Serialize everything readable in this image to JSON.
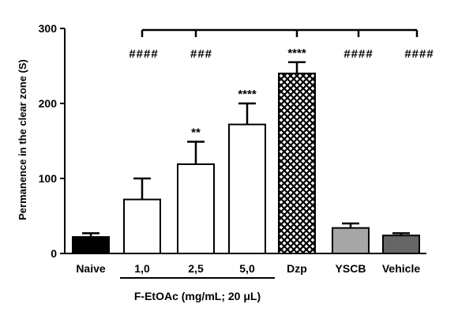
{
  "chart_data": {
    "type": "bar",
    "categories": [
      "Naive",
      "1,0",
      "2,5",
      "5,0",
      "Dzp",
      "YSCB",
      "Vehicle"
    ],
    "values": [
      22,
      72,
      119,
      172,
      240,
      34,
      24
    ],
    "errors": [
      5,
      28,
      30,
      28,
      15,
      6,
      3
    ],
    "fills": [
      "#000000",
      "#ffffff",
      "#ffffff",
      "#ffffff",
      "crosshatch",
      "#a6a6a6",
      "#666666"
    ],
    "ylabel": "Permanence in the clear zone (S)",
    "ylim": [
      0,
      300
    ],
    "yticks": [
      0,
      100,
      200,
      300
    ],
    "group_label": "F-EtOAc (mg/mL; 20 μL)",
    "significance_above_bars": [
      "",
      "",
      "**",
      "****",
      "****",
      "",
      ""
    ],
    "comparison_marks": [
      "####",
      "###",
      "####",
      "####"
    ],
    "grid": false
  }
}
